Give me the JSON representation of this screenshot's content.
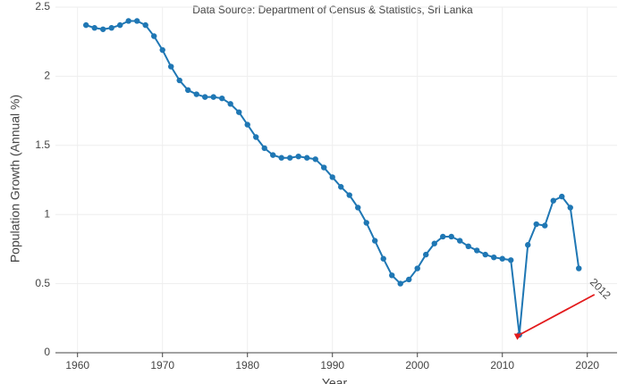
{
  "chart_data": {
    "type": "line",
    "title": "Data Source: Department of Census & Statistics, Sri Lanka",
    "x_label": "Year",
    "y_label": "Population Growth (Annual %)",
    "color": "#1f77b4",
    "x": [
      1961,
      1962,
      1963,
      1964,
      1965,
      1966,
      1967,
      1968,
      1969,
      1970,
      1971,
      1972,
      1973,
      1974,
      1975,
      1976,
      1977,
      1978,
      1979,
      1980,
      1981,
      1982,
      1983,
      1984,
      1985,
      1986,
      1987,
      1988,
      1989,
      1990,
      1991,
      1992,
      1993,
      1994,
      1995,
      1996,
      1997,
      1998,
      1999,
      2000,
      2001,
      2002,
      2003,
      2004,
      2005,
      2006,
      2007,
      2008,
      2009,
      2010,
      2011,
      2012,
      2013,
      2014,
      2015,
      2016,
      2017,
      2018,
      2019
    ],
    "values": [
      2.37,
      2.35,
      2.34,
      2.35,
      2.37,
      2.4,
      2.4,
      2.37,
      2.29,
      2.19,
      2.07,
      1.97,
      1.9,
      1.87,
      1.85,
      1.85,
      1.84,
      1.8,
      1.74,
      1.65,
      1.56,
      1.48,
      1.43,
      1.41,
      1.41,
      1.42,
      1.41,
      1.4,
      1.34,
      1.27,
      1.2,
      1.14,
      1.05,
      0.94,
      0.81,
      0.68,
      0.56,
      0.5,
      0.53,
      0.61,
      0.71,
      0.79,
      0.84,
      0.84,
      0.81,
      0.77,
      0.74,
      0.71,
      0.69,
      0.68,
      0.67,
      0.13,
      0.78,
      0.93,
      0.92,
      1.1,
      1.13,
      1.05,
      0.61
    ],
    "xlim": [
      1957.4,
      2023.5
    ],
    "ylim": [
      0,
      2.5
    ],
    "xticks": [
      1960,
      1970,
      1980,
      1990,
      2000,
      2010,
      2020
    ],
    "yticks": [
      0,
      0.5,
      1,
      1.5,
      2,
      2.5
    ],
    "grid": true,
    "annotations": [
      {
        "text": "2012",
        "x": 2012,
        "y": 0.13,
        "color": "#e31a1c"
      }
    ]
  }
}
